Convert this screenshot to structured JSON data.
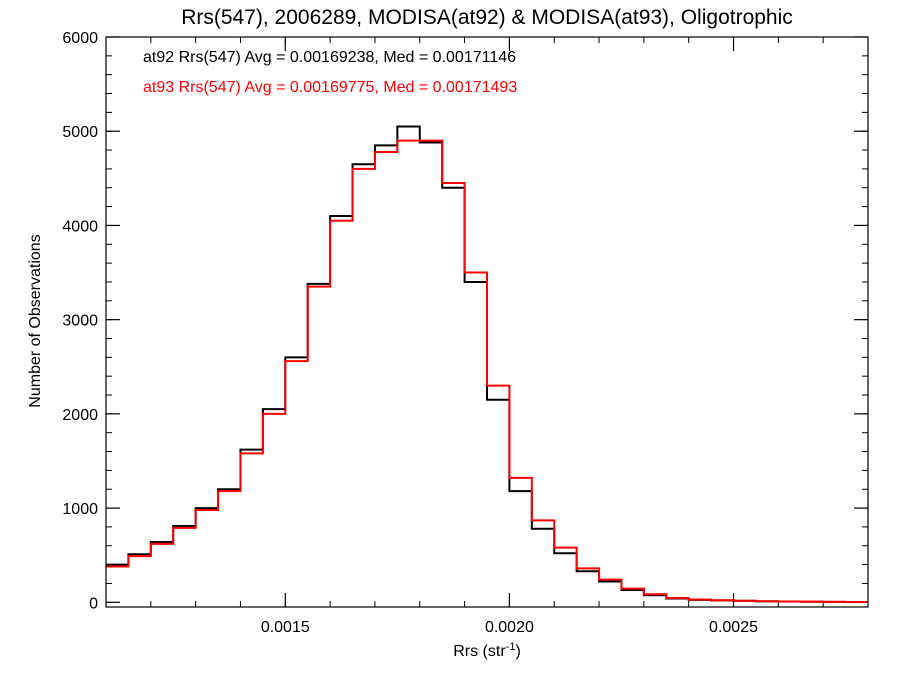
{
  "chart_data": {
    "type": "line",
    "style": "step-histogram",
    "title": "Rrs(547), 2006289, MODISA(at92) & MODISA(at93), Oligotrophic",
    "xlabel": "Rrs (str",
    "xlabel_superscript": "-1",
    "xlabel_suffix": ")",
    "ylabel": "Number of Observations",
    "xlim": [
      0.0011,
      0.0028
    ],
    "ylim": [
      -50,
      6000
    ],
    "x_ticks": [
      0.0015,
      0.002,
      0.0025
    ],
    "x_tick_labels": [
      "0.0015",
      "0.0020",
      "0.0025"
    ],
    "x_minor_step": 0.0001,
    "y_ticks": [
      0,
      1000,
      2000,
      3000,
      4000,
      5000,
      6000
    ],
    "y_tick_labels": [
      "0",
      "1000",
      "2000",
      "3000",
      "4000",
      "5000",
      "6000"
    ],
    "y_minor_step": 200,
    "grid": false,
    "legend_position": "top-left",
    "legend": [
      {
        "text": "at92 Rrs(547) Avg = 0.00169238, Med = 0.00171146",
        "color": "#000000"
      },
      {
        "text": "at93 Rrs(547) Avg = 0.00169775, Med = 0.00171493",
        "color": "#ff0000"
      }
    ],
    "series": [
      {
        "name": "at92",
        "color": "#000000",
        "points": [
          [
            0.0011,
            400
          ],
          [
            0.00115,
            510
          ],
          [
            0.0012,
            640
          ],
          [
            0.00125,
            810
          ],
          [
            0.0013,
            1000
          ],
          [
            0.00135,
            1200
          ],
          [
            0.0014,
            1620
          ],
          [
            0.00145,
            2050
          ],
          [
            0.0015,
            2600
          ],
          [
            0.00155,
            3380
          ],
          [
            0.0016,
            4100
          ],
          [
            0.00165,
            4650
          ],
          [
            0.0017,
            4850
          ],
          [
            0.00175,
            5050
          ],
          [
            0.0018,
            4880
          ],
          [
            0.00185,
            4400
          ],
          [
            0.0019,
            3400
          ],
          [
            0.00195,
            2150
          ],
          [
            0.002,
            1180
          ],
          [
            0.00205,
            780
          ],
          [
            0.0021,
            520
          ],
          [
            0.00215,
            330
          ],
          [
            0.0022,
            220
          ],
          [
            0.00225,
            130
          ],
          [
            0.0023,
            75
          ],
          [
            0.00235,
            40
          ],
          [
            0.0024,
            25
          ],
          [
            0.00245,
            20
          ],
          [
            0.0025,
            15
          ],
          [
            0.00255,
            10
          ],
          [
            0.0026,
            8
          ],
          [
            0.00265,
            6
          ],
          [
            0.0027,
            4
          ],
          [
            0.00275,
            3
          ],
          [
            0.0028,
            2
          ]
        ]
      },
      {
        "name": "at93",
        "color": "#ff0000",
        "points": [
          [
            0.0011,
            380
          ],
          [
            0.00115,
            490
          ],
          [
            0.0012,
            620
          ],
          [
            0.00125,
            790
          ],
          [
            0.0013,
            980
          ],
          [
            0.00135,
            1180
          ],
          [
            0.0014,
            1580
          ],
          [
            0.00145,
            2000
          ],
          [
            0.0015,
            2560
          ],
          [
            0.00155,
            3350
          ],
          [
            0.0016,
            4050
          ],
          [
            0.00165,
            4600
          ],
          [
            0.0017,
            4780
          ],
          [
            0.00175,
            4900
          ],
          [
            0.0018,
            4900
          ],
          [
            0.00185,
            4450
          ],
          [
            0.0019,
            3500
          ],
          [
            0.00195,
            2300
          ],
          [
            0.002,
            1320
          ],
          [
            0.00205,
            870
          ],
          [
            0.0021,
            580
          ],
          [
            0.00215,
            360
          ],
          [
            0.0022,
            240
          ],
          [
            0.00225,
            145
          ],
          [
            0.0023,
            85
          ],
          [
            0.00235,
            45
          ],
          [
            0.0024,
            30
          ],
          [
            0.00245,
            22
          ],
          [
            0.0025,
            16
          ],
          [
            0.00255,
            11
          ],
          [
            0.0026,
            9
          ],
          [
            0.00265,
            7
          ],
          [
            0.0027,
            5
          ],
          [
            0.00275,
            3
          ],
          [
            0.0028,
            2
          ]
        ]
      }
    ]
  }
}
